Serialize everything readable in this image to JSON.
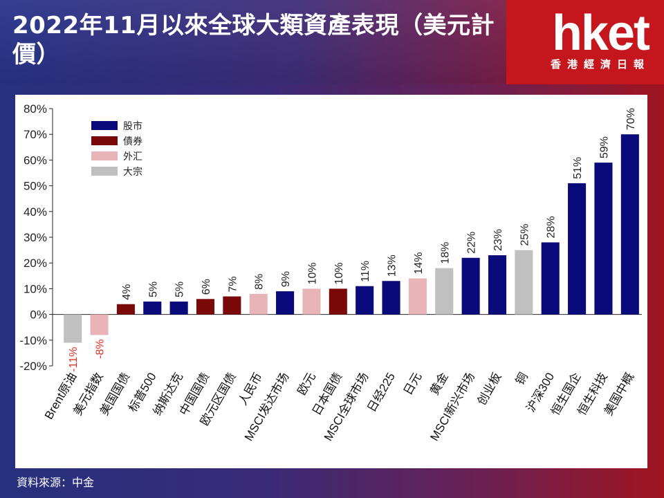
{
  "header": {
    "title": "2022年11月以來全球大類資產表現（美元計價）",
    "logo_text": "hket",
    "logo_subtext": "香港經濟日報"
  },
  "source": "資料來源：中金",
  "colors": {
    "股市": "#0a0a7a",
    "債券": "#7a0a0a",
    "外汇": "#e8b4b8",
    "大宗": "#c0c0c0",
    "negative_label": "#e0302a"
  },
  "chart_data": {
    "type": "bar",
    "title": "",
    "xlabel": "",
    "ylabel": "",
    "ylim": [
      -20,
      80
    ],
    "yticks": [
      "-20%",
      "-10%",
      "0%",
      "10%",
      "20%",
      "30%",
      "40%",
      "50%",
      "60%",
      "70%",
      "80%"
    ],
    "grid": false,
    "legend": {
      "placement": "top-left",
      "entries": [
        "股市",
        "債券",
        "外汇",
        "大宗"
      ]
    },
    "categories": [
      "Brent原油",
      "美元指数",
      "美国国债",
      "标普500",
      "纳斯达克",
      "中国国债",
      "欧元区国债",
      "人民币",
      "MSCI发达市场",
      "欧元",
      "日本国债",
      "MSCI全球市场",
      "日经225",
      "日元",
      "黄金",
      "MSCI新兴市场",
      "创业板",
      "铜",
      "沪深300",
      "恒生国企",
      "恒生科技",
      "美国中概"
    ],
    "values": [
      -11,
      -8,
      4,
      5,
      5,
      6,
      7,
      8,
      9,
      10,
      10,
      11,
      13,
      14,
      18,
      22,
      23,
      25,
      28,
      51,
      59,
      70
    ],
    "labels": [
      "-11%",
      "-8%",
      "4%",
      "5%",
      "5%",
      "6%",
      "7%",
      "8%",
      "9%",
      "10%",
      "10%",
      "11%",
      "13%",
      "14%",
      "18%",
      "22%",
      "23%",
      "25%",
      "28%",
      "51%",
      "59%",
      "70%"
    ],
    "asset_class": [
      "大宗",
      "外汇",
      "債券",
      "股市",
      "股市",
      "債券",
      "債券",
      "外汇",
      "股市",
      "外汇",
      "債券",
      "股市",
      "股市",
      "外汇",
      "大宗",
      "股市",
      "股市",
      "大宗",
      "股市",
      "股市",
      "股市",
      "股市"
    ]
  }
}
